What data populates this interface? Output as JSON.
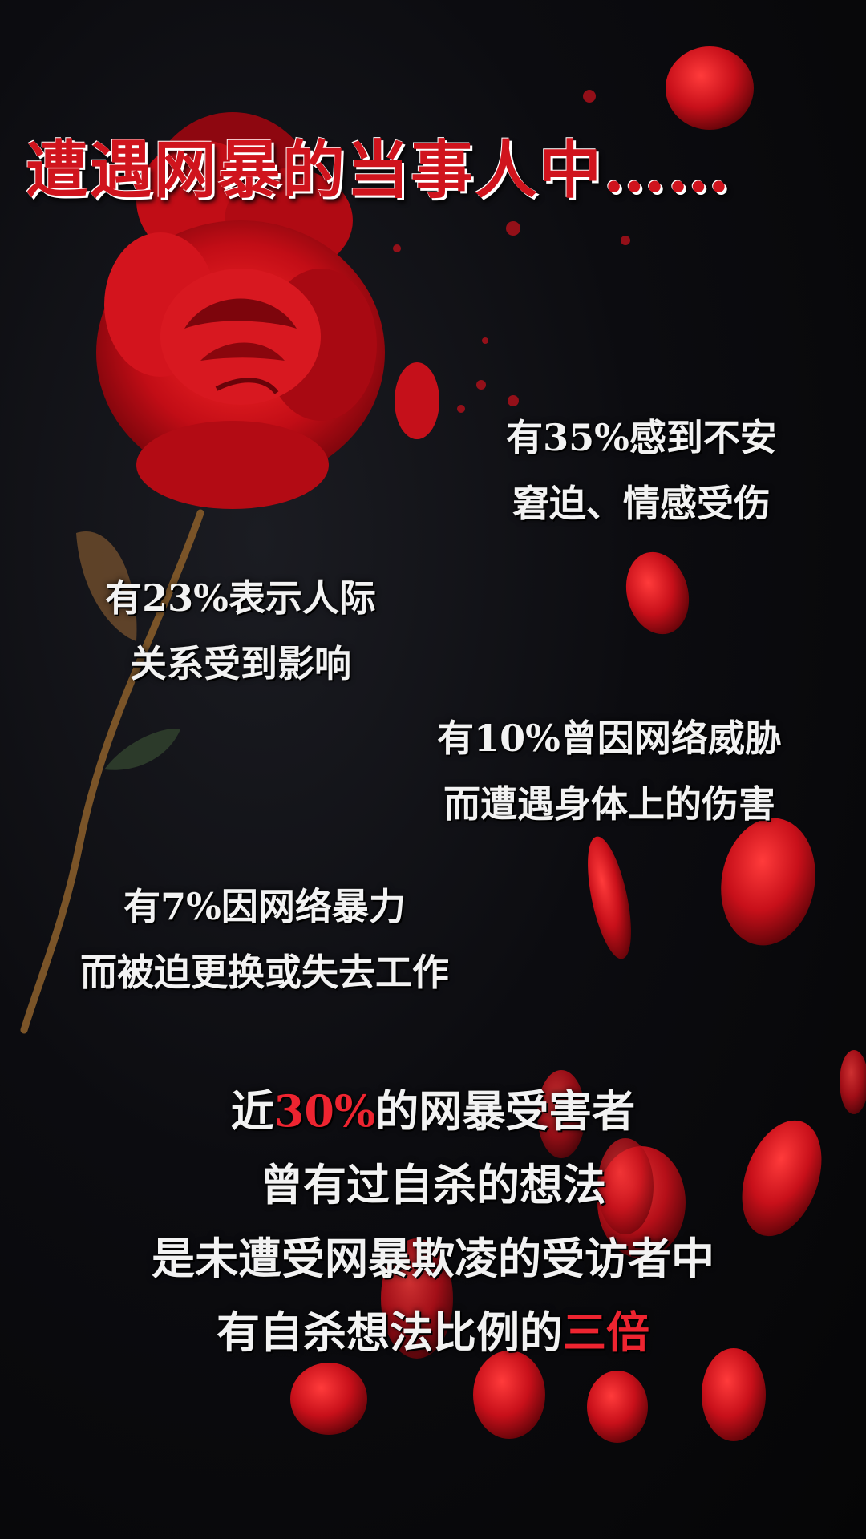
{
  "title": "遭遇网暴的当事人中……",
  "stats": [
    {
      "line1": "有35%感到不安",
      "line2": "窘迫、情感受伤"
    },
    {
      "line1": "有23%表示人际",
      "line2": "关系受到影响"
    },
    {
      "line1": "有10%曾因网络威胁",
      "line2": "而遭遇身体上的伤害"
    },
    {
      "line1": "有7%因网络暴力",
      "line2": "而被迫更换或失去工作"
    }
  ],
  "summary": {
    "line1_pre": "近",
    "line1_highlight": "30%",
    "line1_post": "的网暴受害者",
    "line2": "曾有过自杀的想法",
    "line3": "是未遭受网暴欺凌的受访者中",
    "line4_pre": "有自杀想法比例的",
    "line4_highlight": "三倍"
  },
  "colors": {
    "title_red": "#d0141d",
    "highlight_red": "#ee2430",
    "text_white": "#f2f2f2",
    "background": "#050506"
  }
}
